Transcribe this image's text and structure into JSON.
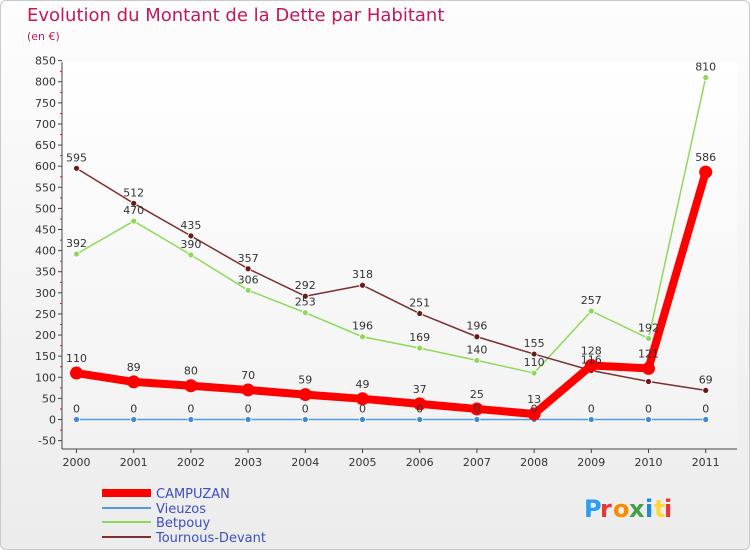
{
  "title": "Evolution du Montant de la Dette par Habitant",
  "subtitle": "(en €)",
  "logo": "Proxiti",
  "colors": {
    "title": "#c2185b",
    "legend_text": "#3c4fbd"
  },
  "chart_data": {
    "type": "line",
    "title": "Evolution du Montant de la Dette par Habitant",
    "ylabel": "(en €)",
    "x": [
      2000,
      2001,
      2002,
      2003,
      2004,
      2005,
      2006,
      2007,
      2008,
      2009,
      2010,
      2011
    ],
    "ylim": [
      -50,
      850
    ],
    "yticks": [
      -50,
      0,
      50,
      100,
      150,
      200,
      250,
      300,
      350,
      400,
      450,
      500,
      550,
      600,
      650,
      700,
      750,
      800,
      850
    ],
    "grid": false,
    "legend_position": "bottom-left",
    "series": [
      {
        "name": "CAMPUZAN",
        "color": "#ff0000",
        "values": [
          110,
          89,
          80,
          70,
          59,
          49,
          37,
          25,
          13,
          128,
          121,
          586
        ]
      },
      {
        "name": "Vieuzos",
        "color": "#5b9bd5",
        "values": [
          0,
          0,
          0,
          0,
          0,
          0,
          0,
          0,
          0,
          0,
          0,
          0
        ]
      },
      {
        "name": "Betpouy",
        "color": "#8ed95b",
        "values": [
          392,
          470,
          390,
          306,
          253,
          196,
          169,
          140,
          110,
          257,
          192,
          810
        ]
      },
      {
        "name": "Tournous-Devant",
        "color": "#7b2f2f",
        "values": [
          595,
          512,
          435,
          357,
          292,
          318,
          251,
          196,
          155,
          116,
          90,
          69
        ]
      }
    ],
    "labels_shown": [
      [
        "110",
        "89",
        "80",
        "70",
        "59",
        "49",
        "37",
        "25",
        "13",
        "128",
        "121",
        "586"
      ],
      [
        "0",
        "0",
        "0",
        "0",
        "0",
        "0",
        "0",
        "0",
        "0",
        "0",
        "0",
        "0"
      ],
      [
        "392",
        "470",
        "390",
        "306",
        "253",
        "196",
        "169",
        "140",
        "110",
        "257",
        "192",
        "810"
      ],
      [
        "595",
        "512",
        "435",
        "357",
        "292",
        "318",
        "251",
        "196",
        "155",
        "116",
        "",
        "69"
      ]
    ]
  }
}
